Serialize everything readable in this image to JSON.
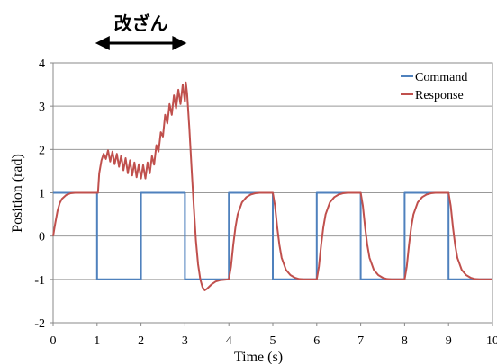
{
  "chart_data": {
    "type": "line",
    "xlabel": "Time (s)",
    "ylabel": "Position  (rad)",
    "xlim": [
      0,
      10
    ],
    "ylim": [
      -2,
      4
    ],
    "x_ticks": [
      0,
      1,
      2,
      3,
      4,
      5,
      6,
      7,
      8,
      9,
      10
    ],
    "y_ticks": [
      4,
      3,
      2,
      1,
      0,
      -1,
      -2
    ],
    "x_tick_labels": [
      "0",
      "1",
      "2",
      "3",
      "4",
      "5",
      "6",
      "7",
      "8",
      "9",
      "10"
    ],
    "y_tick_labels": [
      "4",
      "3",
      "2",
      "1",
      "0",
      "-1",
      "-2"
    ],
    "grid": "horizontal",
    "legend_position": "top-right",
    "annotation": {
      "text": "改ざん",
      "x_range": [
        1,
        3
      ]
    },
    "series": [
      {
        "name": "Command",
        "color": "#4f81bd",
        "points": [
          [
            0,
            1
          ],
          [
            1,
            1
          ],
          [
            1,
            -1
          ],
          [
            2,
            -1
          ],
          [
            2,
            1
          ],
          [
            3,
            1
          ],
          [
            3,
            -1
          ],
          [
            4,
            -1
          ],
          [
            4,
            1
          ],
          [
            5,
            1
          ],
          [
            5,
            -1
          ],
          [
            6,
            -1
          ],
          [
            6,
            1
          ],
          [
            7,
            1
          ],
          [
            7,
            -1
          ],
          [
            8,
            -1
          ],
          [
            8,
            1
          ],
          [
            9,
            1
          ],
          [
            9,
            -1
          ],
          [
            10,
            -1
          ]
        ]
      },
      {
        "name": "Response",
        "color": "#c0504d",
        "points": [
          [
            0,
            0
          ],
          [
            0.05,
            0.3
          ],
          [
            0.1,
            0.58
          ],
          [
            0.15,
            0.76
          ],
          [
            0.2,
            0.86
          ],
          [
            0.3,
            0.95
          ],
          [
            0.4,
            0.99
          ],
          [
            0.5,
            1.0
          ],
          [
            1.0,
            1.0
          ],
          [
            1.02,
            1.0
          ],
          [
            1.05,
            1.45
          ],
          [
            1.1,
            1.75
          ],
          [
            1.15,
            1.9
          ],
          [
            1.2,
            1.78
          ],
          [
            1.25,
            1.98
          ],
          [
            1.3,
            1.72
          ],
          [
            1.35,
            1.95
          ],
          [
            1.4,
            1.66
          ],
          [
            1.45,
            1.9
          ],
          [
            1.5,
            1.6
          ],
          [
            1.55,
            1.86
          ],
          [
            1.6,
            1.52
          ],
          [
            1.65,
            1.8
          ],
          [
            1.7,
            1.45
          ],
          [
            1.75,
            1.75
          ],
          [
            1.8,
            1.4
          ],
          [
            1.85,
            1.7
          ],
          [
            1.9,
            1.36
          ],
          [
            1.95,
            1.66
          ],
          [
            2.0,
            1.33
          ],
          [
            2.05,
            1.64
          ],
          [
            2.1,
            1.33
          ],
          [
            2.15,
            1.7
          ],
          [
            2.2,
            1.45
          ],
          [
            2.25,
            1.85
          ],
          [
            2.3,
            1.65
          ],
          [
            2.35,
            2.1
          ],
          [
            2.4,
            1.95
          ],
          [
            2.45,
            2.4
          ],
          [
            2.5,
            2.3
          ],
          [
            2.55,
            2.8
          ],
          [
            2.6,
            2.6
          ],
          [
            2.65,
            3.05
          ],
          [
            2.7,
            2.8
          ],
          [
            2.75,
            3.25
          ],
          [
            2.8,
            2.95
          ],
          [
            2.85,
            3.38
          ],
          [
            2.9,
            3.05
          ],
          [
            2.95,
            3.5
          ],
          [
            3.0,
            3.1
          ],
          [
            3.02,
            3.55
          ],
          [
            3.05,
            3.3
          ],
          [
            3.1,
            2.5
          ],
          [
            3.15,
            1.6
          ],
          [
            3.2,
            0.7
          ],
          [
            3.25,
            -0.1
          ],
          [
            3.3,
            -0.65
          ],
          [
            3.35,
            -1.0
          ],
          [
            3.4,
            -1.18
          ],
          [
            3.45,
            -1.25
          ],
          [
            3.5,
            -1.22
          ],
          [
            3.6,
            -1.12
          ],
          [
            3.7,
            -1.05
          ],
          [
            3.8,
            -1.02
          ],
          [
            4.0,
            -1.0
          ],
          [
            4.05,
            -0.7
          ],
          [
            4.1,
            -0.2
          ],
          [
            4.15,
            0.2
          ],
          [
            4.2,
            0.5
          ],
          [
            4.3,
            0.78
          ],
          [
            4.4,
            0.9
          ],
          [
            4.5,
            0.96
          ],
          [
            4.6,
            0.99
          ],
          [
            4.7,
            1.0
          ],
          [
            5.0,
            1.0
          ],
          [
            5.05,
            0.7
          ],
          [
            5.1,
            0.2
          ],
          [
            5.15,
            -0.2
          ],
          [
            5.2,
            -0.5
          ],
          [
            5.3,
            -0.78
          ],
          [
            5.4,
            -0.9
          ],
          [
            5.5,
            -0.96
          ],
          [
            5.6,
            -0.99
          ],
          [
            5.7,
            -1.0
          ],
          [
            6.0,
            -1.0
          ],
          [
            6.05,
            -0.7
          ],
          [
            6.1,
            -0.2
          ],
          [
            6.15,
            0.2
          ],
          [
            6.2,
            0.5
          ],
          [
            6.3,
            0.78
          ],
          [
            6.4,
            0.9
          ],
          [
            6.5,
            0.96
          ],
          [
            6.6,
            0.99
          ],
          [
            6.7,
            1.0
          ],
          [
            7.0,
            1.0
          ],
          [
            7.05,
            0.7
          ],
          [
            7.1,
            0.2
          ],
          [
            7.15,
            -0.2
          ],
          [
            7.2,
            -0.5
          ],
          [
            7.3,
            -0.78
          ],
          [
            7.4,
            -0.9
          ],
          [
            7.5,
            -0.96
          ],
          [
            7.6,
            -0.99
          ],
          [
            7.7,
            -1.0
          ],
          [
            8.0,
            -1.0
          ],
          [
            8.05,
            -0.7
          ],
          [
            8.1,
            -0.2
          ],
          [
            8.15,
            0.2
          ],
          [
            8.2,
            0.5
          ],
          [
            8.3,
            0.78
          ],
          [
            8.4,
            0.9
          ],
          [
            8.5,
            0.96
          ],
          [
            8.6,
            0.99
          ],
          [
            8.7,
            1.0
          ],
          [
            9.0,
            1.0
          ],
          [
            9.05,
            0.7
          ],
          [
            9.1,
            0.2
          ],
          [
            9.15,
            -0.2
          ],
          [
            9.2,
            -0.5
          ],
          [
            9.3,
            -0.78
          ],
          [
            9.4,
            -0.9
          ],
          [
            9.5,
            -0.96
          ],
          [
            9.6,
            -0.99
          ],
          [
            9.7,
            -1.0
          ],
          [
            10.0,
            -1.0
          ]
        ]
      }
    ]
  }
}
